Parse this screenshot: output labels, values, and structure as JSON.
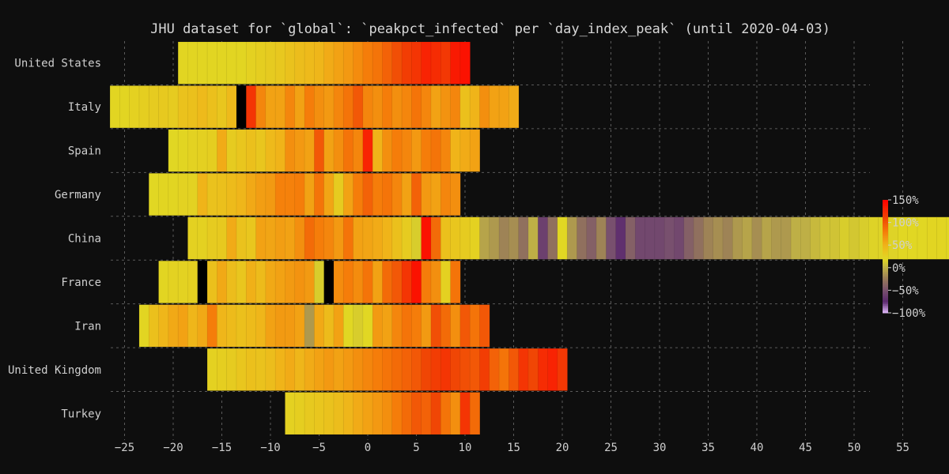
{
  "chart_data": {
    "type": "heatmap",
    "title": "JHU dataset for `global`: `peakpct_infected` per `day_index_peak` (until 2020-04-03)",
    "xlabel": "",
    "ylabel": "",
    "x_ticks": [
      -25,
      -20,
      -15,
      -10,
      -5,
      0,
      5,
      10,
      15,
      20,
      25,
      30,
      35,
      40,
      45,
      50,
      55
    ],
    "colorbar": {
      "ticks": [
        150,
        100,
        50,
        0,
        -50,
        -100
      ],
      "tick_labels": [
        "150%",
        "100%",
        "50%",
        "0%",
        "−50%",
        "−100%"
      ],
      "range": [
        -100,
        150
      ]
    },
    "grid": true,
    "rows": [
      {
        "label": "United States",
        "start": -19,
        "values": [
          22,
          22,
          22,
          22,
          22,
          22,
          22,
          25,
          28,
          30,
          33,
          38,
          42,
          45,
          48,
          55,
          60,
          65,
          72,
          80,
          85,
          95,
          105,
          115,
          120,
          130,
          125,
          118,
          135,
          140
        ]
      },
      {
        "label": "Italy",
        "start": -26,
        "values": [
          22,
          22,
          25,
          28,
          30,
          32,
          30,
          38,
          40,
          45,
          40,
          35,
          45,
          null,
          120,
          75,
          60,
          60,
          75,
          60,
          80,
          70,
          65,
          75,
          85,
          100,
          75,
          70,
          80,
          70,
          75,
          85,
          75,
          60,
          68,
          75,
          40,
          50,
          70,
          60,
          60,
          55
        ]
      },
      {
        "label": "Spain",
        "start": -20,
        "values": [
          20,
          22,
          24,
          26,
          28,
          55,
          30,
          35,
          40,
          35,
          45,
          50,
          70,
          65,
          60,
          100,
          60,
          70,
          85,
          75,
          130,
          50,
          70,
          80,
          75,
          65,
          80,
          85,
          75,
          50,
          55,
          60
        ]
      },
      {
        "label": "Germany",
        "start": -22,
        "values": [
          20,
          22,
          22,
          24,
          24,
          50,
          38,
          40,
          44,
          48,
          56,
          62,
          64,
          78,
          78,
          80,
          60,
          85,
          58,
          30,
          60,
          80,
          95,
          80,
          85,
          75,
          60,
          95,
          65,
          60,
          75,
          70
        ]
      },
      {
        "label": "China",
        "start": -18,
        "values": [
          25,
          25,
          30,
          32,
          55,
          38,
          35,
          60,
          58,
          62,
          60,
          70,
          90,
          80,
          75,
          65,
          85,
          60,
          58,
          55,
          50,
          40,
          30,
          15,
          140,
          90,
          40,
          35,
          30,
          25,
          -5,
          -10,
          -20,
          -15,
          -30,
          0,
          -60,
          -30,
          20,
          -10,
          -30,
          -40,
          -20,
          -50,
          -70,
          -40,
          -55,
          -55,
          -55,
          -50,
          -55,
          -40,
          -30,
          -20,
          -15,
          -20,
          -10,
          -5,
          -15,
          -5,
          -10,
          -10,
          0,
          0,
          5,
          10,
          10,
          15,
          12,
          15,
          18,
          18,
          18,
          20,
          20,
          20,
          22,
          22,
          20,
          22,
          22,
          25
        ]
      },
      {
        "label": "France",
        "start": -21,
        "values": [
          22,
          24,
          24,
          26,
          null,
          40,
          56,
          42,
          35,
          52,
          44,
          56,
          60,
          64,
          68,
          64,
          15,
          null,
          72,
          80,
          72,
          85,
          60,
          90,
          100,
          120,
          140,
          80,
          70,
          25,
          85
        ]
      },
      {
        "label": "Iran",
        "start": -23,
        "values": [
          22,
          40,
          48,
          56,
          60,
          48,
          56,
          80,
          48,
          44,
          40,
          44,
          48,
          60,
          64,
          64,
          60,
          -10,
          56,
          44,
          60,
          20,
          15,
          20,
          64,
          60,
          75,
          85,
          80,
          64,
          105,
          90,
          70,
          100,
          85,
          100
        ]
      },
      {
        "label": "United Kingdom",
        "start": -16,
        "values": [
          25,
          28,
          30,
          35,
          40,
          38,
          42,
          50,
          55,
          48,
          55,
          60,
          65,
          60,
          65,
          70,
          75,
          80,
          85,
          90,
          95,
          100,
          110,
          115,
          120,
          110,
          105,
          100,
          115,
          95,
          85,
          100,
          120,
          110,
          125,
          130,
          118
        ]
      },
      {
        "label": "Turkey",
        "start": -8,
        "values": [
          25,
          28,
          32,
          35,
          38,
          42,
          48,
          55,
          60,
          65,
          70,
          80,
          90,
          100,
          95,
          110,
          85,
          70,
          120,
          90
        ]
      }
    ]
  }
}
